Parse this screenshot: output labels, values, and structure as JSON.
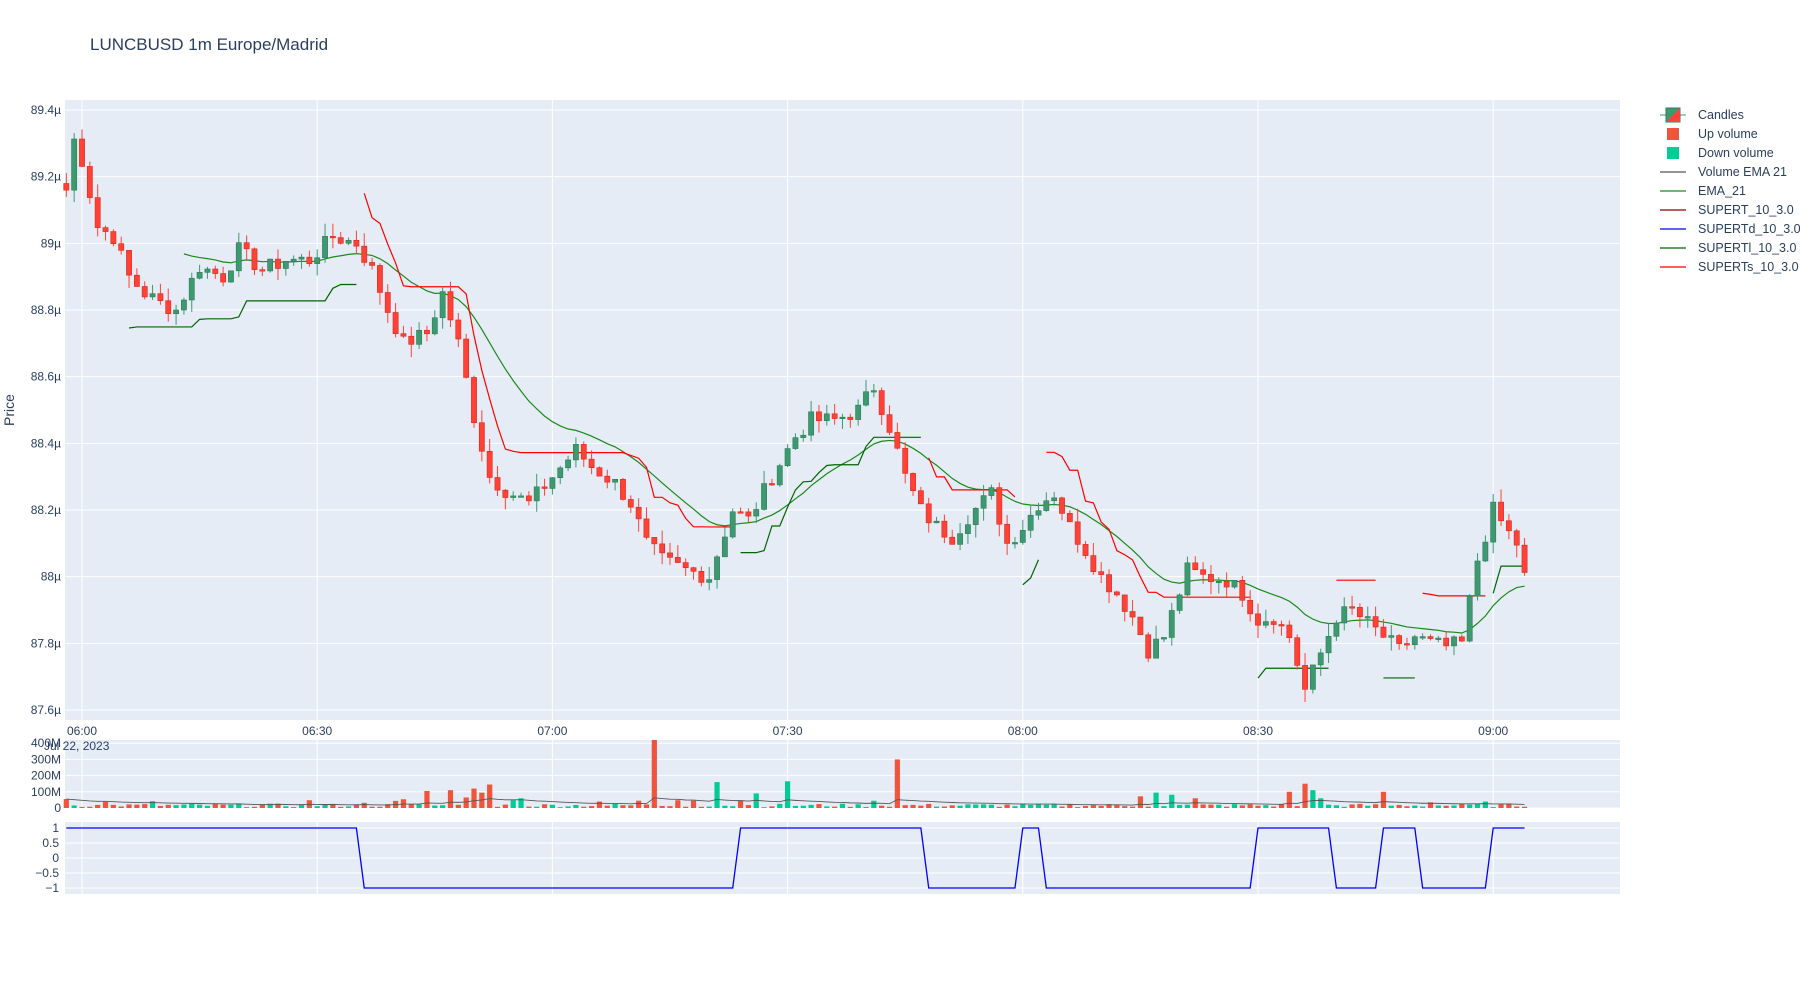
{
  "chart_data": {
    "type": "candlestick",
    "title": "LUNCBUSD 1m Europe/Madrid",
    "ylabel": "Price",
    "x_start": "06:00",
    "x_step_minutes": 1,
    "price_ylim": [
      87.57,
      89.43
    ],
    "price_ticks": [
      {
        "v": 87.6,
        "label": "87.6µ"
      },
      {
        "v": 87.8,
        "label": "87.8µ"
      },
      {
        "v": 88.0,
        "label": "88µ"
      },
      {
        "v": 88.2,
        "label": "88.2µ"
      },
      {
        "v": 88.4,
        "label": "88.4µ"
      },
      {
        "v": 88.6,
        "label": "88.6µ"
      },
      {
        "v": 88.8,
        "label": "88.8µ"
      },
      {
        "v": 89.0,
        "label": "89µ"
      },
      {
        "v": 89.2,
        "label": "89.2µ"
      },
      {
        "v": 89.4,
        "label": "89.4µ"
      }
    ],
    "x_ticks": [
      {
        "min": 0,
        "label": "06:00"
      },
      {
        "min": 30,
        "label": "06:30"
      },
      {
        "min": 60,
        "label": "07:00"
      },
      {
        "min": 90,
        "label": "07:30"
      },
      {
        "min": 120,
        "label": "08:00"
      },
      {
        "min": 150,
        "label": "08:30"
      },
      {
        "min": 180,
        "label": "09:00"
      }
    ],
    "x_date_label": "Jul 22, 2023",
    "price_anchors": [
      [
        -2,
        89.16
      ],
      [
        -1,
        89.31
      ],
      [
        0,
        89.25
      ],
      [
        2,
        89.05
      ],
      [
        4,
        89.02
      ],
      [
        6,
        88.9
      ],
      [
        8,
        88.85
      ],
      [
        10,
        88.82
      ],
      [
        12,
        88.8
      ],
      [
        15,
        88.93
      ],
      [
        18,
        88.9
      ],
      [
        20,
        88.98
      ],
      [
        23,
        88.92
      ],
      [
        26,
        88.95
      ],
      [
        29,
        88.95
      ],
      [
        32,
        89.02
      ],
      [
        35,
        89.0
      ],
      [
        37,
        88.92
      ],
      [
        39,
        88.8
      ],
      [
        41,
        88.7
      ],
      [
        44,
        88.73
      ],
      [
        46,
        88.85
      ],
      [
        48,
        88.7
      ],
      [
        50,
        88.48
      ],
      [
        52,
        88.3
      ],
      [
        54,
        88.26
      ],
      [
        57,
        88.22
      ],
      [
        60,
        88.3
      ],
      [
        63,
        88.38
      ],
      [
        65,
        88.33
      ],
      [
        68,
        88.28
      ],
      [
        70,
        88.22
      ],
      [
        72,
        88.1
      ],
      [
        74,
        88.05
      ],
      [
        77,
        88.02
      ],
      [
        80,
        88.0
      ],
      [
        83,
        88.2
      ],
      [
        85,
        88.17
      ],
      [
        88,
        88.3
      ],
      [
        91,
        88.42
      ],
      [
        93,
        88.47
      ],
      [
        96,
        88.47
      ],
      [
        99,
        88.5
      ],
      [
        101,
        88.57
      ],
      [
        103,
        88.45
      ],
      [
        105,
        88.3
      ],
      [
        107,
        88.2
      ],
      [
        109,
        88.15
      ],
      [
        111,
        88.12
      ],
      [
        113,
        88.18
      ],
      [
        116,
        88.25
      ],
      [
        118,
        88.1
      ],
      [
        120,
        88.15
      ],
      [
        122,
        88.22
      ],
      [
        124,
        88.25
      ],
      [
        126,
        88.15
      ],
      [
        128,
        88.08
      ],
      [
        130,
        88.0
      ],
      [
        132,
        87.95
      ],
      [
        134,
        87.88
      ],
      [
        136,
        87.78
      ],
      [
        138,
        87.82
      ],
      [
        141,
        88.02
      ],
      [
        143,
        88.0
      ],
      [
        146,
        87.99
      ],
      [
        148,
        87.95
      ],
      [
        150,
        87.87
      ],
      [
        152,
        87.88
      ],
      [
        154,
        87.82
      ],
      [
        156,
        87.66
      ],
      [
        158,
        87.77
      ],
      [
        160,
        87.88
      ],
      [
        162,
        87.9
      ],
      [
        164,
        87.86
      ],
      [
        166,
        87.82
      ],
      [
        168,
        87.78
      ],
      [
        170,
        87.82
      ],
      [
        172,
        87.8
      ],
      [
        174,
        87.79
      ],
      [
        176,
        87.8
      ],
      [
        178,
        88.05
      ],
      [
        180,
        88.2
      ],
      [
        182,
        88.13
      ],
      [
        183,
        88.1
      ],
      [
        184,
        88.0
      ]
    ],
    "volume_ylim": [
      0,
      420
    ],
    "volume_ticks": [
      {
        "v": 0,
        "label": "0"
      },
      {
        "v": 100,
        "label": "100M"
      },
      {
        "v": 200,
        "label": "200M"
      },
      {
        "v": 300,
        "label": "300M"
      },
      {
        "v": 400,
        "label": "400M"
      }
    ],
    "volume_spikes": [
      [
        -2,
        55
      ],
      [
        3,
        38
      ],
      [
        9,
        42
      ],
      [
        29,
        48
      ],
      [
        36,
        32
      ],
      [
        40,
        44
      ],
      [
        41,
        54
      ],
      [
        44,
        105
      ],
      [
        47,
        110
      ],
      [
        49,
        65
      ],
      [
        50,
        120
      ],
      [
        51,
        95
      ],
      [
        52,
        145
      ],
      [
        55,
        48
      ],
      [
        56,
        60
      ],
      [
        66,
        40
      ],
      [
        71,
        45
      ],
      [
        73,
        420
      ],
      [
        76,
        48
      ],
      [
        78,
        45
      ],
      [
        81,
        160
      ],
      [
        84,
        45
      ],
      [
        86,
        90
      ],
      [
        90,
        165
      ],
      [
        101,
        45
      ],
      [
        104,
        300
      ],
      [
        135,
        72
      ],
      [
        137,
        95
      ],
      [
        139,
        82
      ],
      [
        142,
        60
      ],
      [
        154,
        100
      ],
      [
        156,
        150
      ],
      [
        157,
        110
      ],
      [
        158,
        60
      ],
      [
        166,
        100
      ],
      [
        172,
        35
      ],
      [
        179,
        40
      ]
    ],
    "direction_ylim": [
      -1.2,
      1.2
    ],
    "direction_ticks": [
      {
        "v": 1,
        "label": "1"
      },
      {
        "v": 0.5,
        "label": "0.5"
      },
      {
        "v": 0,
        "label": "0"
      },
      {
        "v": -0.5,
        "label": "−0.5"
      },
      {
        "v": -1,
        "label": "−1"
      }
    ],
    "supertrend_direction_segments": [
      [
        -2,
        1
      ],
      [
        35,
        1
      ],
      [
        36,
        -1
      ],
      [
        83,
        -1
      ],
      [
        84,
        1
      ],
      [
        107,
        1
      ],
      [
        108,
        -1
      ],
      [
        119,
        -1
      ],
      [
        120,
        1
      ],
      [
        122,
        1
      ],
      [
        123,
        -1
      ],
      [
        149,
        -1
      ],
      [
        150,
        1
      ],
      [
        159,
        1
      ],
      [
        160,
        -1
      ],
      [
        165,
        -1
      ],
      [
        166,
        1
      ],
      [
        170,
        1
      ],
      [
        171,
        -1
      ],
      [
        179,
        -1
      ],
      [
        180,
        1
      ],
      [
        184,
        1
      ]
    ],
    "series": [
      {
        "name": "Candles",
        "color_up": "#3d9970",
        "color_down": "#ff4136"
      },
      {
        "name": "Up volume",
        "color": "#ef553b"
      },
      {
        "name": "Down volume",
        "color": "#00cc96"
      },
      {
        "name": "Volume EMA 21",
        "color": "#555555"
      },
      {
        "name": "EMA_21",
        "color": "#1a8a1a"
      },
      {
        "name": "SUPERT_10_3.0",
        "color": "#8b0000"
      },
      {
        "name": "SUPERTd_10_3.0",
        "color": "#0000ff"
      },
      {
        "name": "SUPERTl_10_3.0",
        "color": "#006400"
      },
      {
        "name": "SUPERTs_10_3.0",
        "color": "#ff0000"
      }
    ]
  }
}
